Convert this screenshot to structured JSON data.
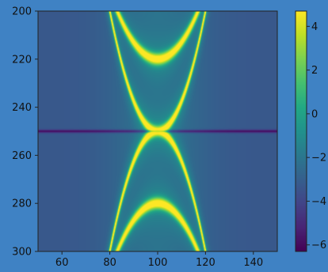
{
  "chart_data": {
    "type": "heatmap",
    "colormap": "viridis",
    "x_ticks": [
      60,
      80,
      100,
      120,
      140
    ],
    "y_ticks": [
      200,
      220,
      240,
      260,
      280,
      300
    ],
    "xlim": [
      50,
      150
    ],
    "ylim": [
      200,
      300
    ],
    "y_inverted": true,
    "colorbar": {
      "ticks": [
        4,
        2,
        0,
        -2,
        -4,
        -6
      ],
      "range": [
        -6.3,
        4.7
      ]
    },
    "features": {
      "crossing_point": [
        100,
        250
      ],
      "dark_horizontal_line_y": 250,
      "inner_arc_vertex": [
        [
          100,
          220
        ],
        [
          100,
          280
        ]
      ]
    },
    "title": "",
    "xlabel": "",
    "ylabel": ""
  }
}
